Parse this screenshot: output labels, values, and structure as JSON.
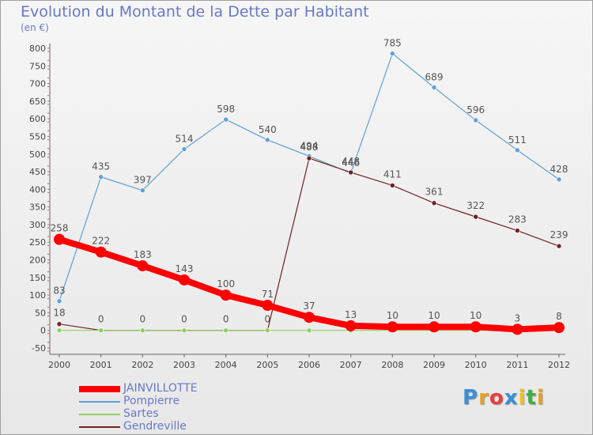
{
  "header": {
    "title": "Evolution du Montant de la Dette par Habitant",
    "unit": "(en €)"
  },
  "brand": {
    "logo_text": [
      "P",
      "r",
      "o",
      "x",
      "i",
      "t",
      "i"
    ],
    "logo_colors": [
      "#3a8fd8",
      "#e8a020",
      "#e84040",
      "#3a8fd8",
      "#f0c020",
      "#40b040",
      "#e8a020"
    ]
  },
  "chart_data": {
    "type": "line",
    "title": "Evolution du Montant de la Dette par Habitant",
    "ylabel": "(en €)",
    "x": [
      "2000",
      "2001",
      "2002",
      "2003",
      "2004",
      "2005",
      "2006",
      "2007",
      "2008",
      "2009",
      "2010",
      "2011",
      "2012"
    ],
    "yticks": [
      "-50",
      "0",
      "50",
      "100",
      "150",
      "200",
      "250",
      "300",
      "350",
      "400",
      "450",
      "500",
      "550",
      "600",
      "650",
      "700",
      "750",
      "800"
    ],
    "ylim": [
      -50,
      800
    ],
    "grid": false,
    "legend_position": "bottom-left",
    "series": [
      {
        "name": "JAINVILLOTTE",
        "color": "#ff0000",
        "values": [
          258,
          222,
          183,
          143,
          100,
          71,
          37,
          13,
          10,
          10,
          10,
          3,
          8
        ],
        "labels": [
          "258",
          "222",
          "183",
          "143",
          "100",
          "71",
          "37",
          "13",
          "10",
          "10",
          "10",
          "3",
          "8"
        ]
      },
      {
        "name": "Pompierre",
        "color": "#5fa0d8",
        "values": [
          83,
          435,
          397,
          514,
          598,
          540,
          494,
          446,
          785,
          689,
          596,
          511,
          428
        ],
        "labels": [
          "83",
          "435",
          "397",
          "514",
          "598",
          "540",
          "494",
          "446",
          "785",
          "689",
          "596",
          "511",
          "428"
        ]
      },
      {
        "name": "Sartes",
        "color": "#90d060",
        "values": [
          0,
          0,
          0,
          0,
          0,
          0,
          0,
          0,
          0,
          0,
          0,
          0,
          0
        ],
        "labels": [
          "0",
          "0",
          "0",
          "0",
          "0",
          "0",
          "0",
          "0",
          "0",
          "0",
          "0",
          "0",
          "0"
        ]
      },
      {
        "name": "Gendreville",
        "color": "#702020",
        "values": [
          18,
          0,
          0,
          0,
          0,
          0,
          488,
          448,
          411,
          361,
          322,
          283,
          239
        ],
        "labels": [
          "18",
          "0",
          "0",
          "0",
          "0",
          "0",
          "488",
          "448",
          "411",
          "361",
          "322",
          "283",
          "239"
        ]
      }
    ]
  }
}
